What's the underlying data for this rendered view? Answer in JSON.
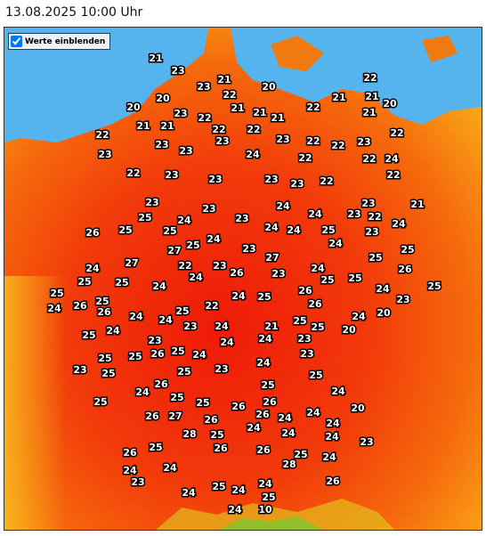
{
  "header": {
    "title": "13.08.2025 10:00 Uhr"
  },
  "toggle": {
    "label": "Werte einblenden",
    "checked": true
  },
  "map": {
    "values": [
      21,
      23,
      21,
      23,
      22,
      20,
      22,
      20,
      21,
      21,
      20,
      20,
      23,
      21,
      21,
      22,
      21,
      22,
      21,
      21,
      21,
      22,
      22,
      22,
      22,
      23,
      23,
      22,
      23,
      23,
      22,
      23,
      23,
      24,
      22,
      22,
      24,
      22,
      23,
      23,
      23,
      23,
      22,
      22,
      23,
      23,
      24,
      24,
      23,
      21,
      23,
      22,
      25,
      24,
      23,
      24,
      26,
      25,
      25,
      24,
      24,
      25,
      23,
      24,
      24,
      25,
      27,
      23,
      25,
      27,
      25,
      24,
      22,
      23,
      27,
      24,
      26,
      25,
      25,
      24,
      26,
      23,
      25,
      25,
      24,
      25,
      25,
      24,
      26,
      24,
      25,
      25,
      24,
      26,
      23,
      26,
      26,
      22,
      25,
      24,
      24,
      20,
      24,
      25,
      24,
      21,
      23,
      25,
      24,
      25,
      20,
      23,
      24,
      23,
      24,
      25,
      26,
      24,
      25,
      25,
      23,
      23,
      23,
      25,
      24,
      25,
      25,
      26,
      24,
      25,
      24,
      25,
      25,
      25,
      26,
      26,
      20,
      24,
      26,
      27,
      26,
      26,
      24,
      24,
      24,
      28,
      25,
      24,
      24,
      23,
      25,
      26,
      26,
      26,
      25,
      28,
      24,
      24,
      24,
      23,
      26,
      24,
      25,
      24,
      24,
      25,
      24,
      10
    ]
  }
}
